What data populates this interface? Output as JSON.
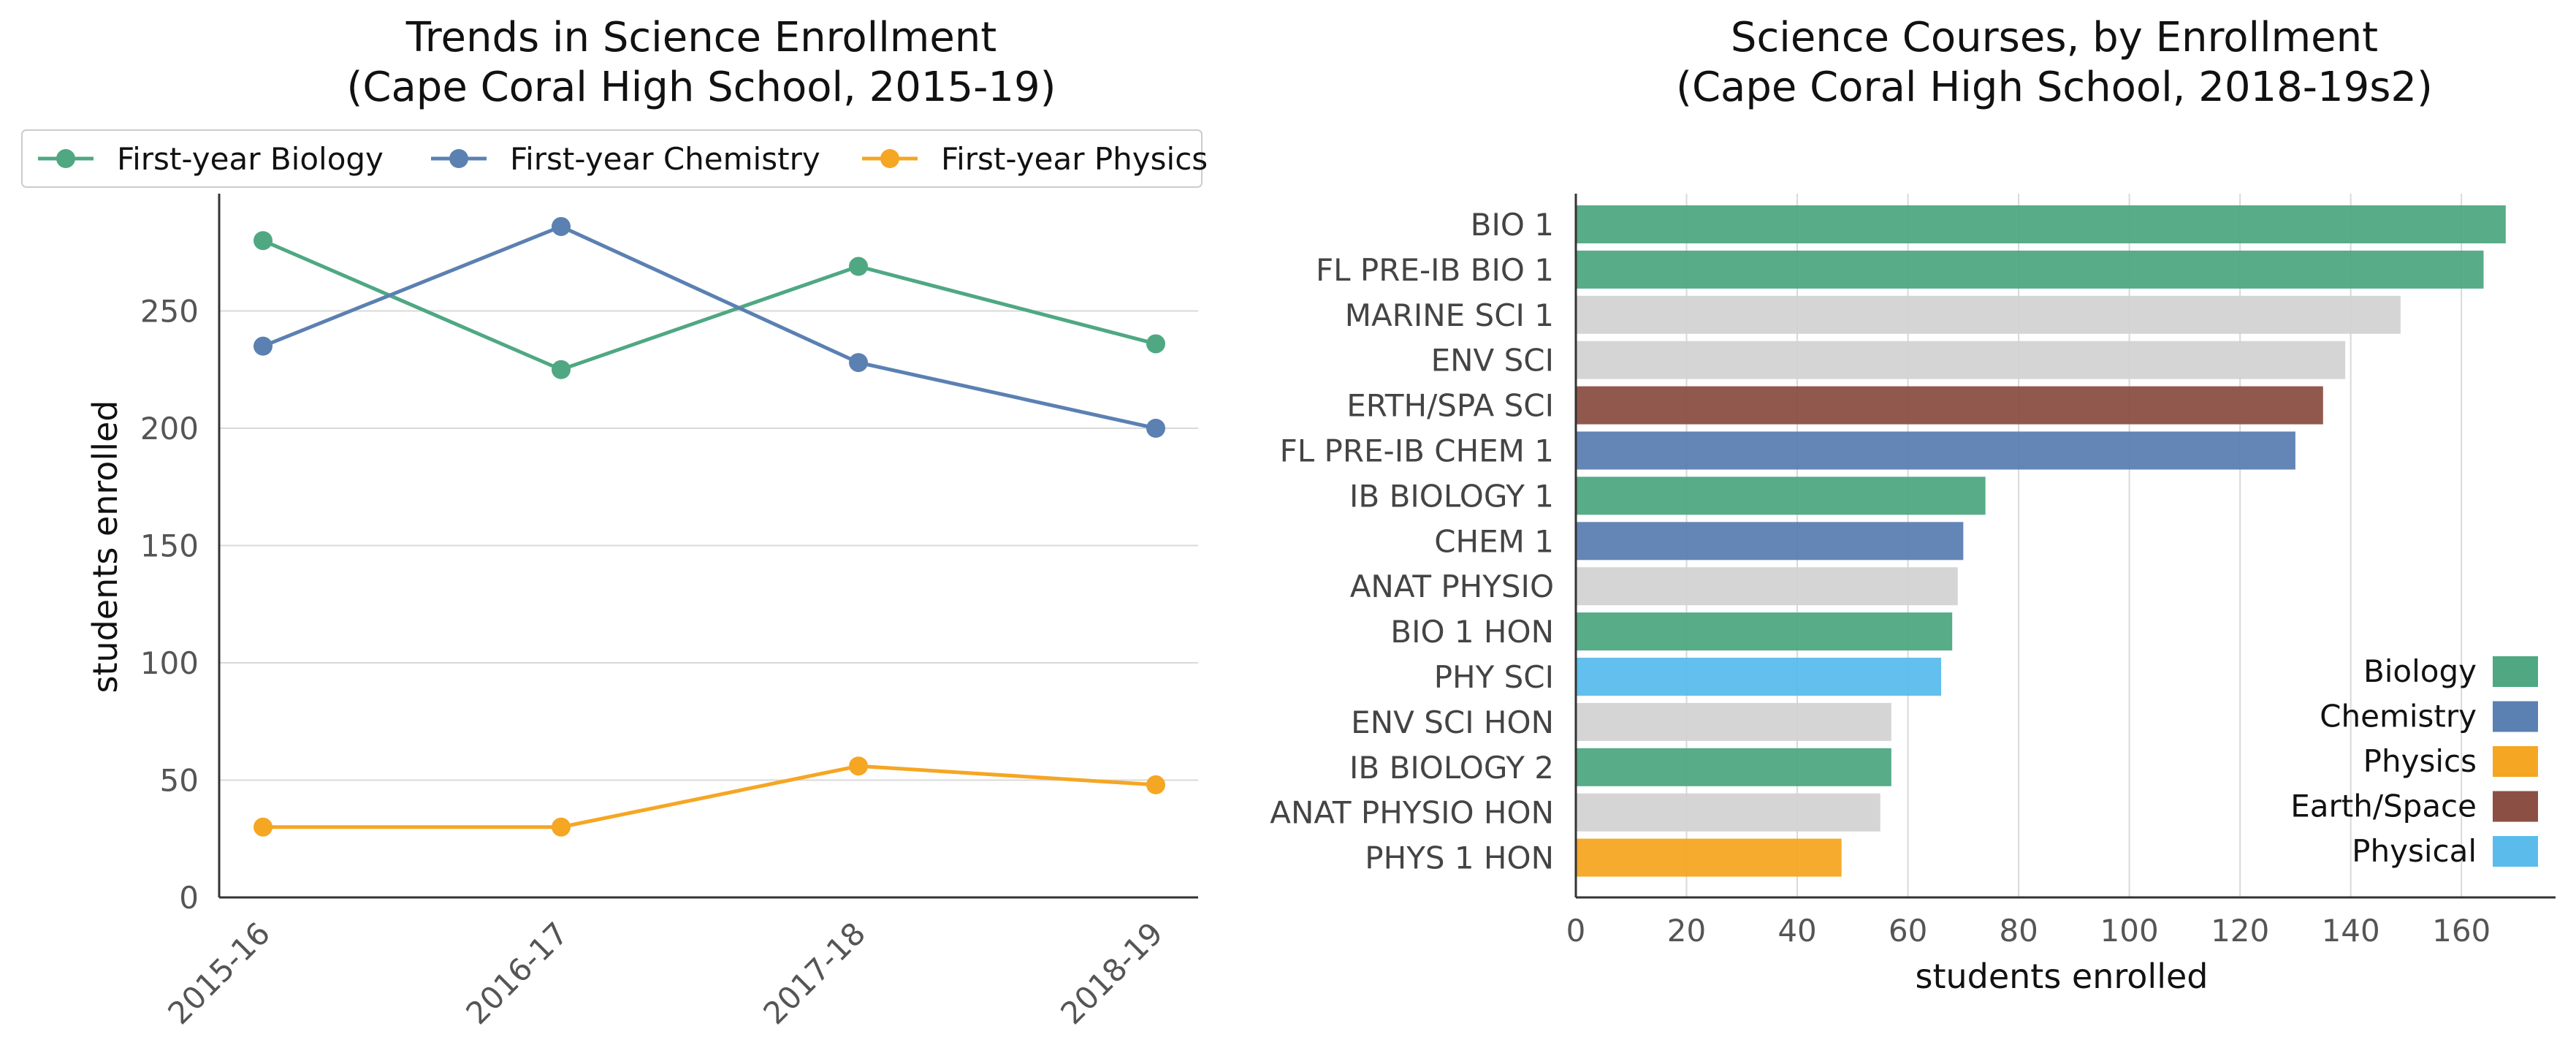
{
  "chart_data": [
    {
      "type": "line",
      "title": "Trends in Science Enrollment",
      "subtitle": "(Cape Coral High School, 2015-19)",
      "xlabel": "",
      "ylabel": "students enrolled",
      "categories": [
        "2015-16",
        "2016-17",
        "2017-18",
        "2018-19"
      ],
      "ylim": [
        0,
        300
      ],
      "yticks": [
        0,
        50,
        100,
        150,
        200,
        250
      ],
      "grid": "horizontal",
      "legend": "top",
      "series": [
        {
          "name": "First-year Biology",
          "color": "#4fa882",
          "values": [
            280,
            225,
            269,
            236
          ]
        },
        {
          "name": "First-year Chemistry",
          "color": "#5b80b2",
          "values": [
            235,
            286,
            228,
            200
          ]
        },
        {
          "name": "First-year Physics",
          "color": "#f5a623",
          "values": [
            30,
            30,
            56,
            48
          ]
        }
      ]
    },
    {
      "type": "bar",
      "orientation": "horizontal",
      "title": "Science Courses, by Enrollment",
      "subtitle": "(Cape Coral High School, 2018-19s2)",
      "xlabel": "students enrolled",
      "ylabel": "",
      "xlim": [
        0,
        177
      ],
      "xticks": [
        0,
        20,
        40,
        60,
        80,
        100,
        120,
        140,
        160
      ],
      "grid": "vertical",
      "legend": "bottom-right",
      "categories": [
        "BIO 1",
        "FL PRE-IB BIO 1",
        "MARINE SCI 1",
        "ENV SCI",
        "ERTH/SPA SCI",
        "FL PRE-IB CHEM 1",
        "IB BIOLOGY 1",
        "CHEM 1",
        "ANAT PHYSIO",
        "BIO 1 HON",
        "PHY SCI",
        "ENV SCI HON",
        "IB BIOLOGY 2",
        "ANAT PHYSIO HON",
        "PHYS 1 HON"
      ],
      "values": [
        168,
        164,
        149,
        139,
        135,
        130,
        74,
        70,
        69,
        68,
        66,
        57,
        57,
        55,
        48
      ],
      "groups": [
        "Biology",
        "Biology",
        "Other",
        "Other",
        "Earth/Space",
        "Chemistry",
        "Biology",
        "Chemistry",
        "Other",
        "Biology",
        "Physical",
        "Other",
        "Biology",
        "Other",
        "Physics"
      ],
      "group_colors": {
        "Biology": "#4fa882",
        "Chemistry": "#5b80b2",
        "Physics": "#f5a623",
        "Earth/Space": "#8b5043",
        "Physical": "#5bbcec",
        "Other": "#d3d3d3"
      },
      "legend_entries": [
        "Biology",
        "Chemistry",
        "Physics",
        "Earth/Space",
        "Physical"
      ]
    }
  ]
}
